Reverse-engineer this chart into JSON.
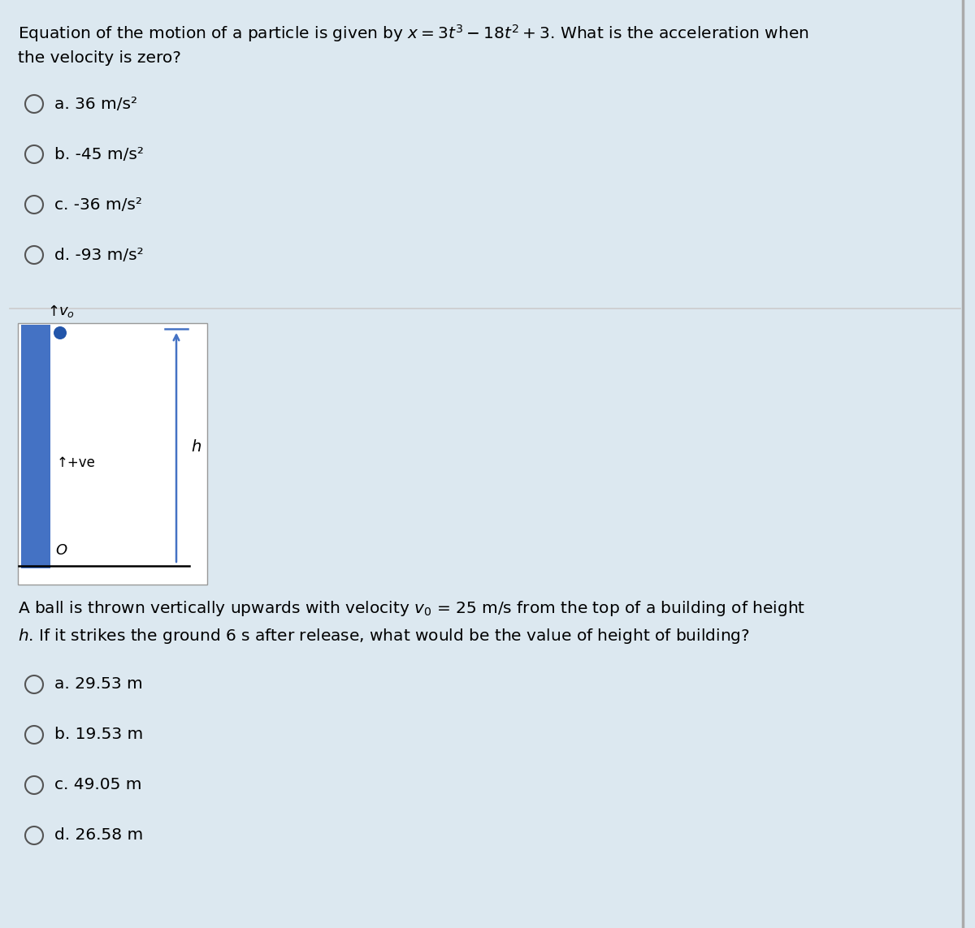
{
  "bg_color": "#dce8f0",
  "white_bg": "#ffffff",
  "q1_options": [
    "a. 36 m/s²",
    "b. -45 m/s²",
    "c. -36 m/s²",
    "d. -93 m/s²"
  ],
  "q2_options": [
    "a. 29.53 m",
    "b. 19.53 m",
    "c. 49.05 m",
    "d. 26.58 m"
  ],
  "building_color": "#4472c4",
  "arrow_color": "#4472c4",
  "ball_color": "#2255aa",
  "text_color": "#000000",
  "divider_color": "#cccccc",
  "font_size": 14.5,
  "opt_font_size": 14.5,
  "right_border_color": "#aaaaaa",
  "circle_edge_color": "#555555"
}
